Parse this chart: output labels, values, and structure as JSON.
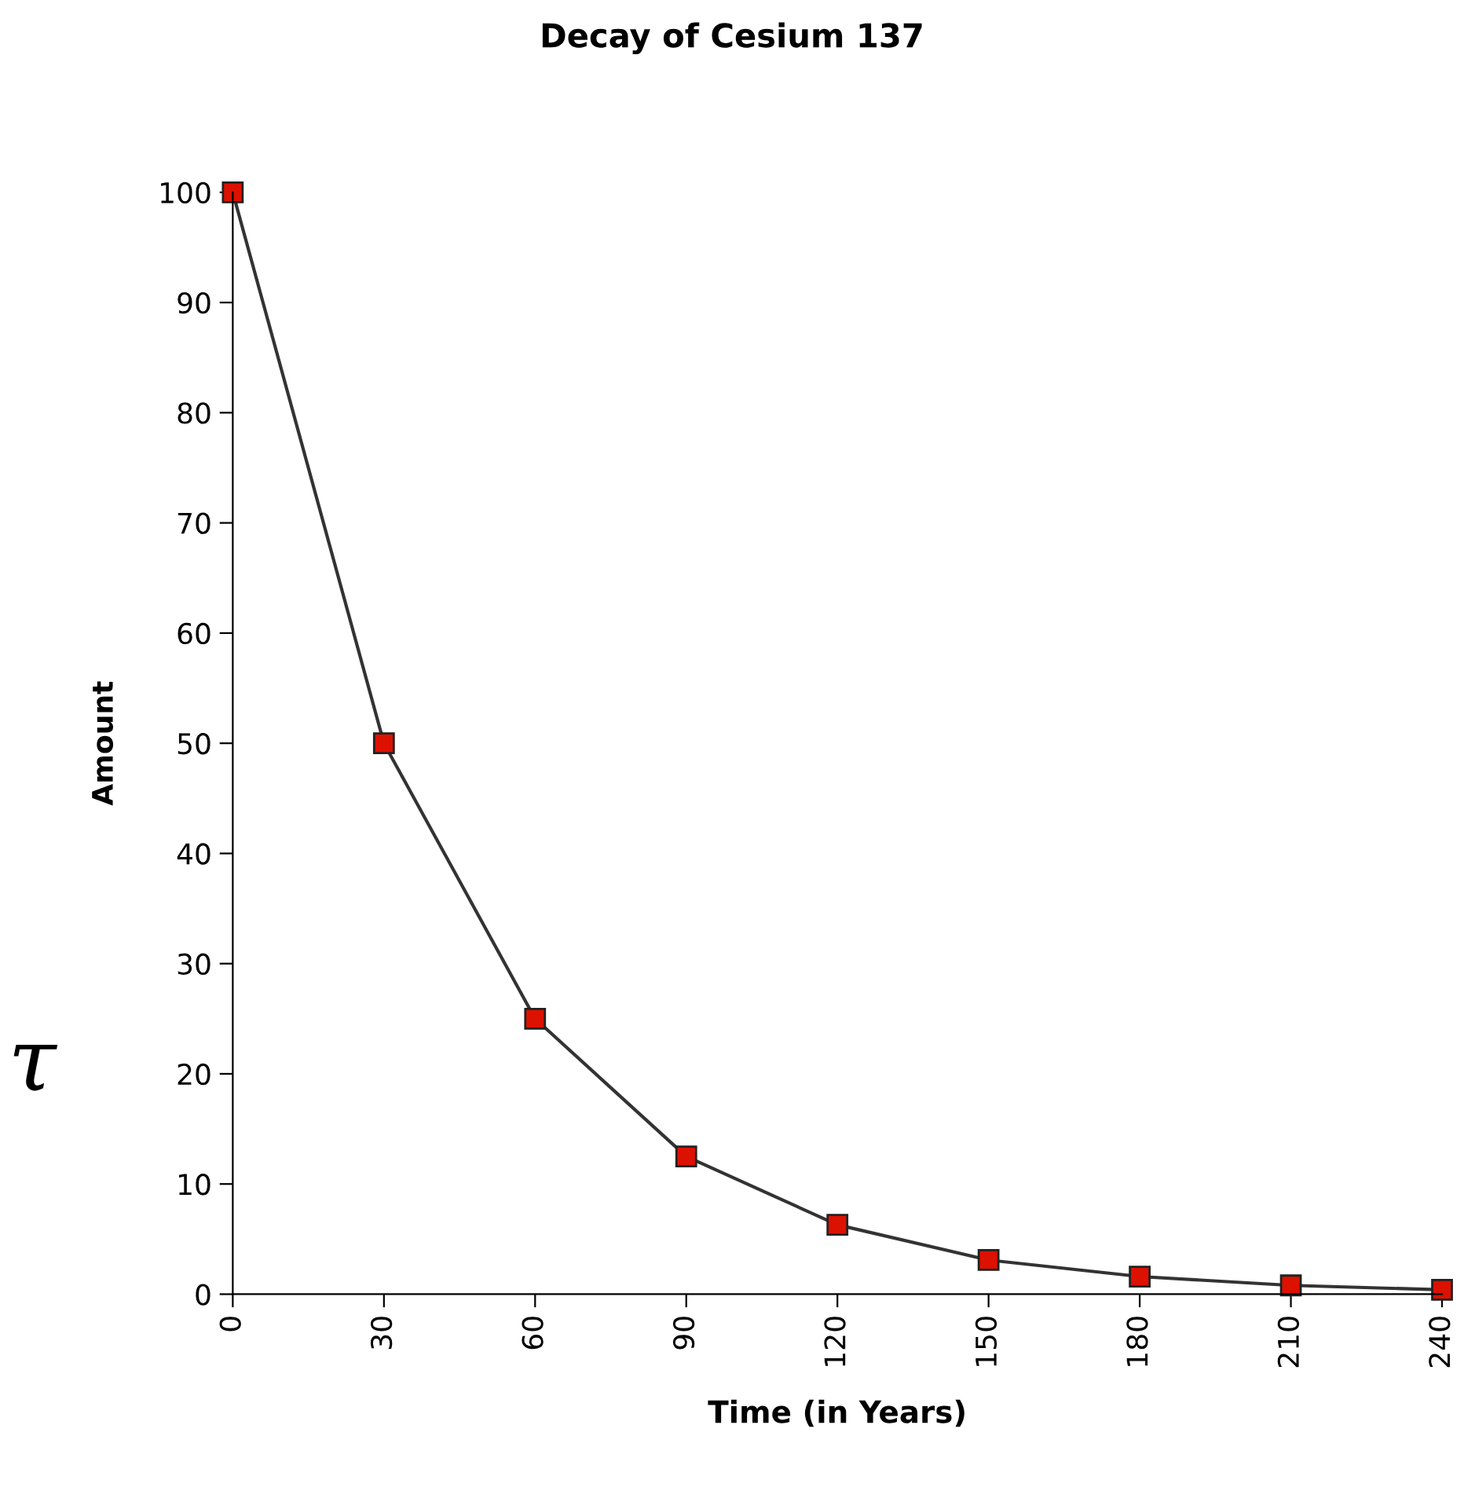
{
  "chart_data": {
    "type": "line",
    "title": "Decay of Cesium 137",
    "xlabel": "Time (in Years)",
    "ylabel": "Amount",
    "x": [
      0,
      30,
      60,
      90,
      120,
      150,
      180,
      210,
      240
    ],
    "series": [
      {
        "color": "#333333",
        "values": [
          100,
          50,
          25,
          12.5,
          6.3,
          3.1,
          1.6,
          0.8,
          0.4
        ]
      }
    ],
    "xlim": [
      0,
      240
    ],
    "xticks": [
      0,
      30,
      60,
      90,
      120,
      150,
      180,
      210,
      240
    ],
    "ylim": [
      0,
      100
    ],
    "yticks": [
      0,
      10,
      20,
      30,
      40,
      50,
      60,
      70,
      80,
      90,
      100
    ],
    "marker": "square",
    "line_style": "solid",
    "grid": false,
    "legend": false,
    "annotations": [
      "τ"
    ]
  }
}
